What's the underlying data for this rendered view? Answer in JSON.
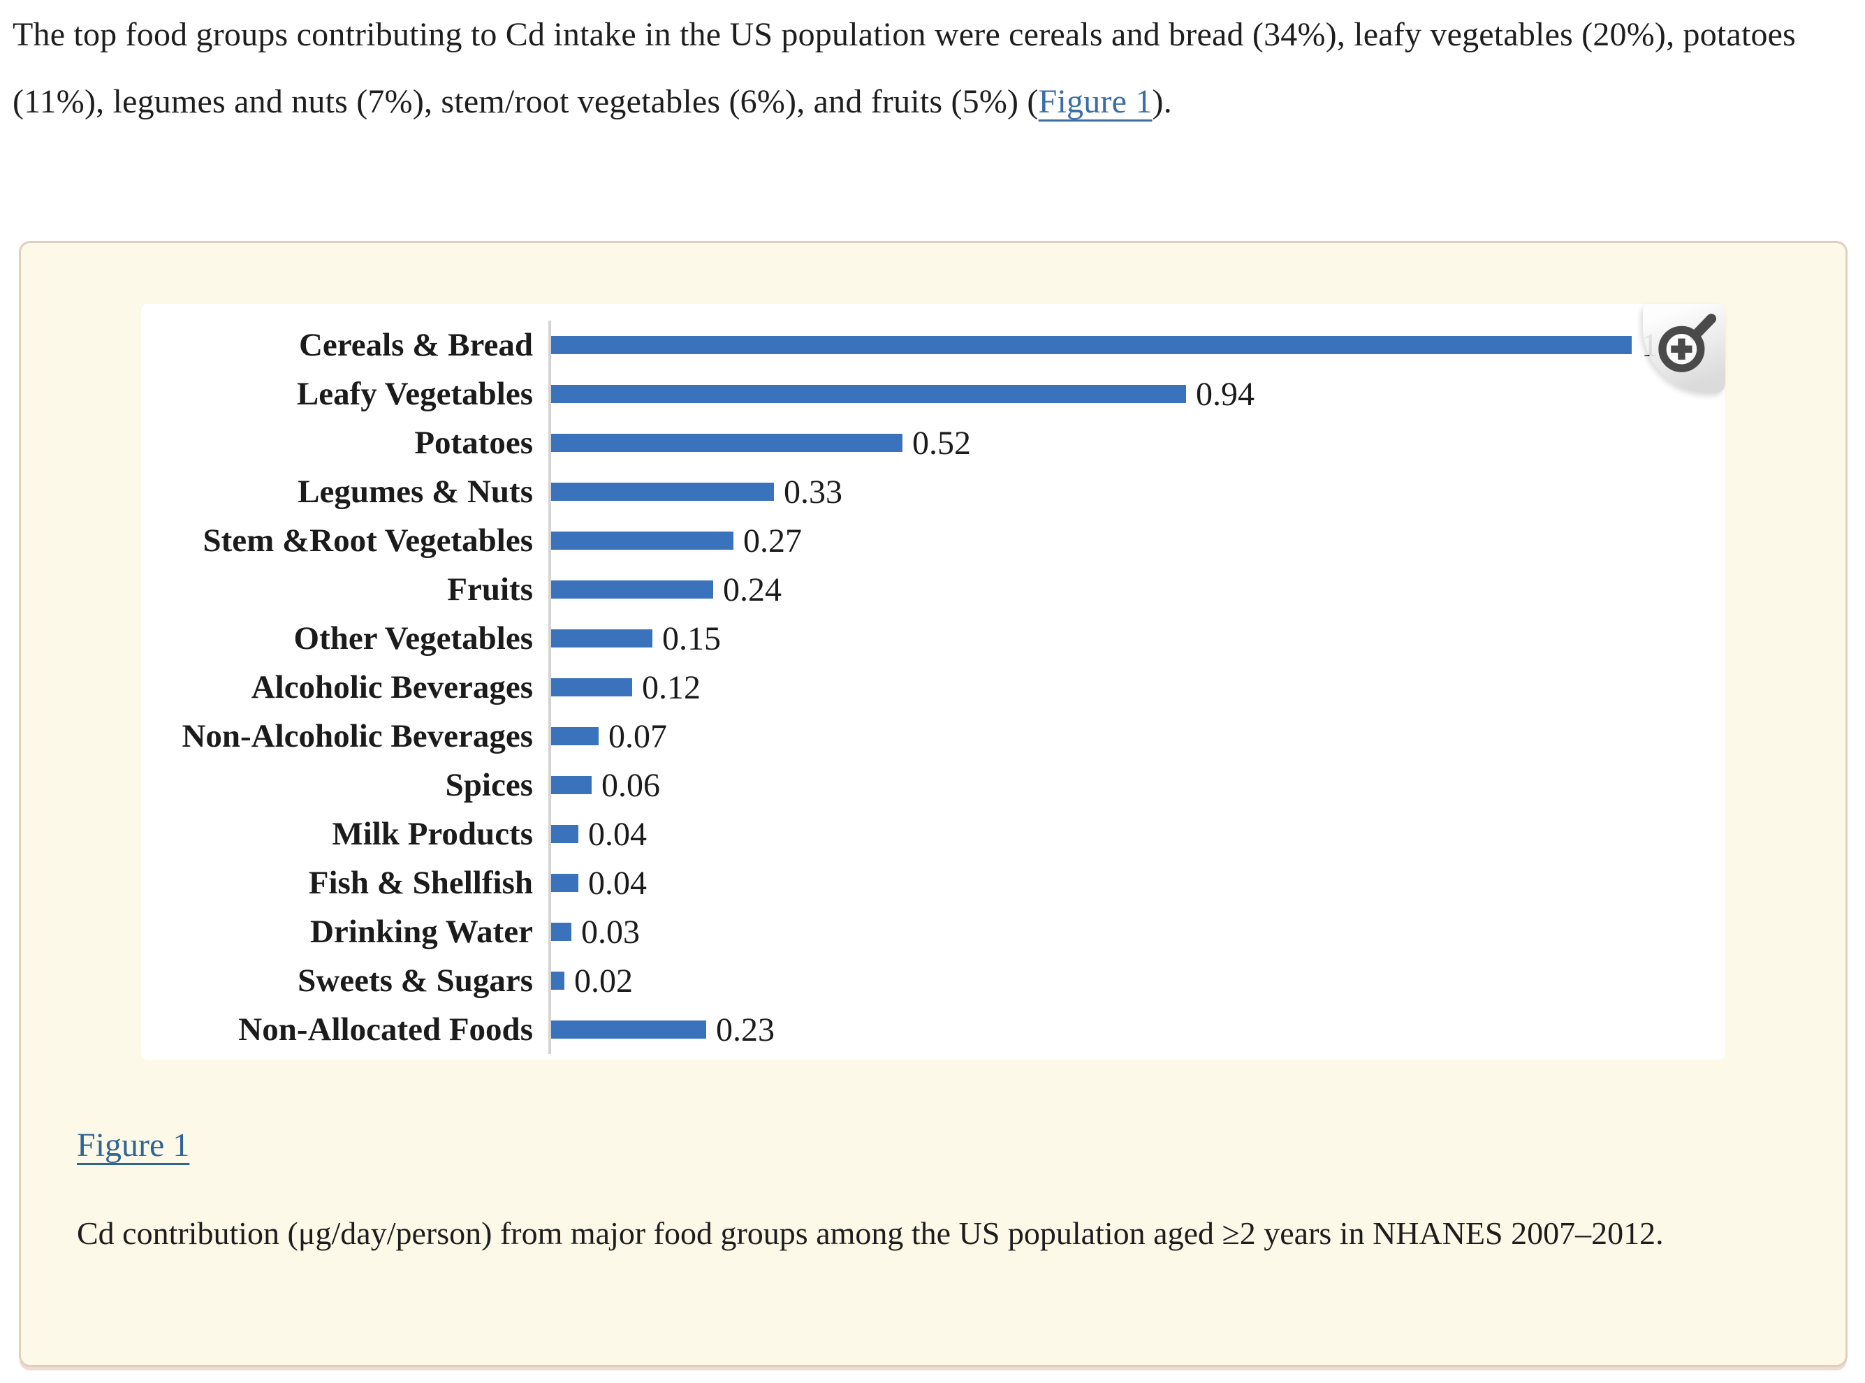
{
  "intro": {
    "text_before_link": "The top food groups contributing to Cd intake in the US population were cereals and bread (34%), leafy vegetables (20%), potatoes (11%), legumes and nuts (7%), stem/root vegetables (6%), and fruits (5%) (",
    "link_label": "Figure 1",
    "text_after_link": ")."
  },
  "figure": {
    "link_label": "Figure 1",
    "caption": "Cd contribution (μg/day/person) from major food groups among the US population aged ≥2 years in NHANES 2007–2012."
  },
  "icons": {
    "zoom": "magnifier-plus-icon"
  },
  "colors": {
    "bar_blue": "#3a73bc",
    "link_blue": "#3a6ea5",
    "caption_link_blue": "#2f6496",
    "card_background": "#fdf9e8",
    "card_border": "#e3cebd",
    "axis_gray": "#d4d4d4",
    "body_text": "#1e1e1e",
    "zoom_icon_gray": "#4a4a4a"
  },
  "chart_data": {
    "type": "bar",
    "orientation": "horizontal",
    "title": "",
    "xlabel": "",
    "ylabel": "",
    "unit": "μg/day/person",
    "grid": false,
    "legend": false,
    "xlim": [
      0,
      1.72
    ],
    "bar_color": "#3a73bc",
    "categories": [
      "Cereals & Bread",
      "Leafy Vegetables",
      "Potatoes",
      "Legumes & Nuts",
      "Stem &Root Vegetables",
      "Fruits",
      "Other Vegetables",
      "Alcoholic Beverages",
      "Non-Alcoholic Beverages",
      "Spices",
      "Milk Products",
      "Fish & Shellfish",
      "Drinking Water",
      "Sweets & Sugars",
      "Non-Allocated Foods"
    ],
    "values": [
      1.6,
      0.94,
      0.52,
      0.33,
      0.27,
      0.24,
      0.15,
      0.12,
      0.07,
      0.06,
      0.04,
      0.04,
      0.03,
      0.02,
      0.23
    ],
    "value_labels": [
      "1.6",
      "0.94",
      "0.52",
      "0.33",
      "0.27",
      "0.24",
      "0.15",
      "0.12",
      "0.07",
      "0.06",
      "0.04",
      "0.04",
      "0.03",
      "0.02",
      "0.23"
    ]
  }
}
